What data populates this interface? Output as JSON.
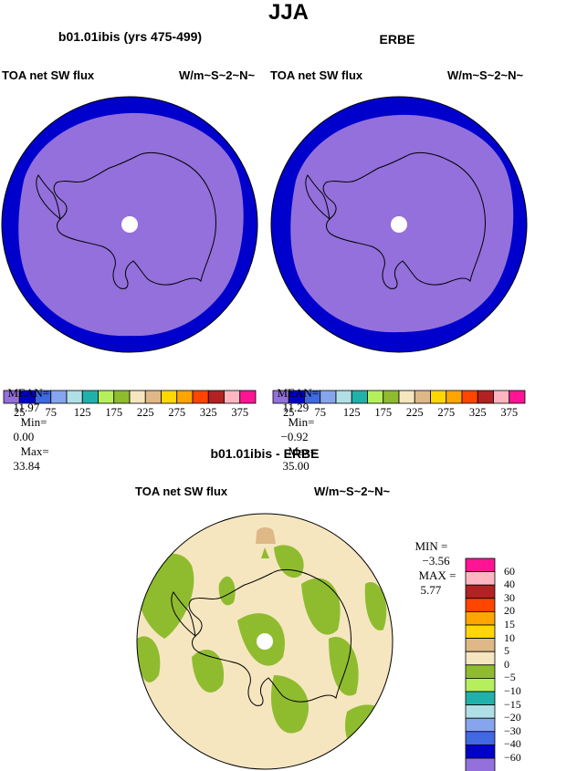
{
  "main_title": "JJA",
  "panels": [
    {
      "title": "b01.01ibis (yrs 475-499)",
      "variable": "TOA net SW flux",
      "units": "W/m~S~2~N~",
      "stats": {
        "mean_label": "MEAN=",
        "mean": "11.97",
        "min_label": "Min=",
        "min": "0.00",
        "max_label": "Max=",
        "max": "33.84"
      }
    },
    {
      "title": "ERBE",
      "variable": "TOA net SW flux",
      "units": "W/m~S~2~N~",
      "stats": {
        "mean_label": "MEAN=",
        "mean": "11.29",
        "min_label": "Min=",
        "min": "−0.92",
        "max_label": "Max=",
        "max": "35.00"
      }
    }
  ],
  "top_colorbar": {
    "colors": [
      "#9370db",
      "#0000cd",
      "#4169e1",
      "#87a5ee",
      "#b0e0e6",
      "#20b2aa",
      "#b5f05c",
      "#8fbc2f",
      "#f5e6c0",
      "#deb887",
      "#ffd700",
      "#ffa500",
      "#ff4500",
      "#b22222",
      "#ffb6c1",
      "#ff1493"
    ],
    "labels": [
      "25",
      "75",
      "125",
      "175",
      "225",
      "275",
      "325",
      "375"
    ]
  },
  "diff_panel": {
    "title": "b01.01ibis - ERBE",
    "variable": "TOA net SW flux",
    "units": "W/m~S~2~N~",
    "stats": {
      "min_label": "MIN =",
      "min": "−3.56",
      "max_label": "MAX =",
      "max": "5.77"
    }
  },
  "diff_colorbar": {
    "colors": [
      "#ff1493",
      "#ffb6c1",
      "#b22222",
      "#ff4500",
      "#ffa500",
      "#ffd700",
      "#deb887",
      "#f5e6c0",
      "#8fbc2f",
      "#b5f05c",
      "#20b2aa",
      "#b0e0e6",
      "#87a5ee",
      "#4169e1",
      "#0000cd",
      "#9370db"
    ],
    "labels": [
      "60",
      "40",
      "30",
      "20",
      "15",
      "10",
      "5",
      "0",
      "−5",
      "−10",
      "−15",
      "−20",
      "−30",
      "−40",
      "−60"
    ]
  },
  "map_colors": {
    "outer_ring": "#0000cd",
    "inner_disc": "#9370db",
    "diff_bg": "#f5e6c0",
    "diff_neg": "#8fbc2f",
    "diff_pos": "#deb887"
  }
}
